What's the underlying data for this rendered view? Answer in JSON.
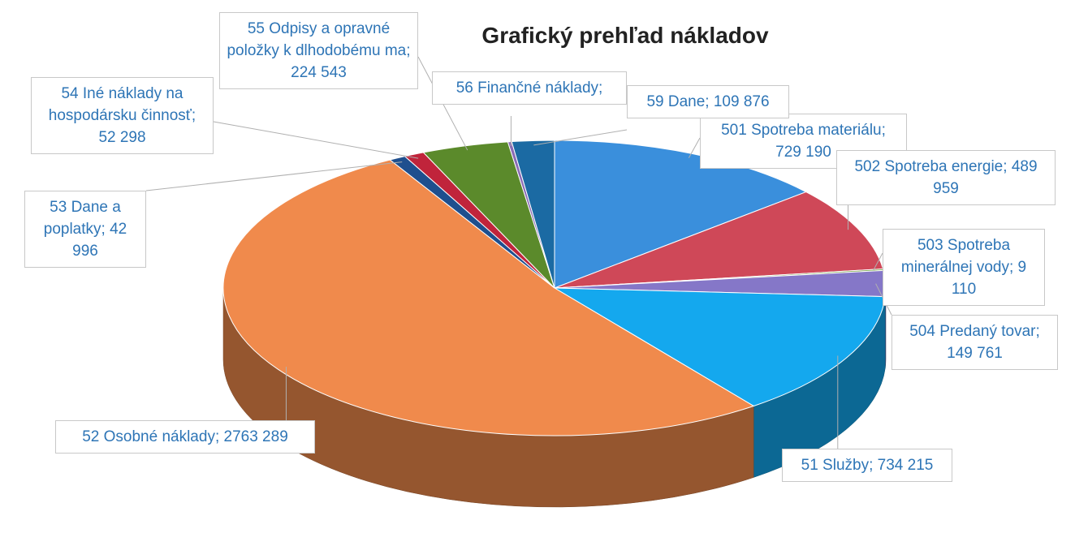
{
  "chart_data": {
    "type": "pie",
    "title": "Grafický prehľad nákladov",
    "label_separator": ";",
    "categories": [
      "501 Spotreba materiálu",
      "502 Spotreba energie",
      "503 Spotreba minerálnej vody",
      "504 Predaný tovar",
      "51 Služby",
      "52 Osobné náklady",
      "53 Dane a poplatky",
      "54 Iné náklady na hospodársku činnosť",
      "55 Odpisy a opravné položky k dlhodobému ma",
      "56 Finančné náklady",
      "59 Dane"
    ],
    "values": [
      729190,
      489959,
      9110,
      149761,
      734215,
      2763289,
      42996,
      52298,
      224543,
      10000,
      109876
    ],
    "value_labels": [
      "729 190",
      "489 959",
      "9 110",
      "149 761",
      "734 215",
      "2763 289",
      "42 996",
      "52 298",
      "224 543",
      null,
      "109 876"
    ],
    "colors": [
      "#3a8fdc",
      "#cf4858",
      "#6c9a3a",
      "#8577c8",
      "#14a8ee",
      "#f08a4c",
      "#1f4f8e",
      "#c0243b",
      "#5b8a2b",
      "#8a6bb5",
      "#1b6aa3"
    ]
  }
}
